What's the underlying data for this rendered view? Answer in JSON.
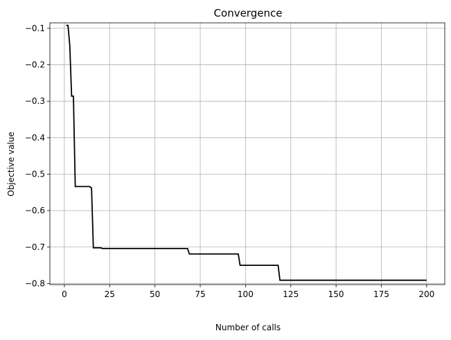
{
  "chart_data": {
    "type": "line",
    "title": "Convergence",
    "xlabel": "Number of calls",
    "ylabel": "Objective value",
    "xlim": [
      -8,
      210
    ],
    "ylim": [
      -0.803,
      -0.085
    ],
    "xticks": [
      0,
      25,
      50,
      75,
      100,
      125,
      150,
      175,
      200
    ],
    "yticks": [
      -0.8,
      -0.7,
      -0.6,
      -0.5,
      -0.4,
      -0.3,
      -0.2,
      -0.1
    ],
    "ytick_labels": [
      "−0.8",
      "−0.7",
      "−0.6",
      "−0.5",
      "−0.4",
      "−0.3",
      "−0.2",
      "−0.1"
    ],
    "grid": true,
    "color": "#000000",
    "series": [
      {
        "x": [
          1,
          2,
          3,
          4,
          5,
          6,
          7,
          8,
          9,
          10,
          11,
          12,
          13,
          14,
          15,
          16,
          17,
          18,
          19,
          20,
          21,
          22,
          25,
          30,
          40,
          50,
          60,
          67,
          68,
          69,
          70,
          75,
          80,
          85,
          90,
          95,
          96,
          97,
          98,
          100,
          105,
          110,
          115,
          117,
          118,
          119,
          120,
          130,
          150,
          175,
          200
        ],
        "y": [
          -0.092,
          -0.092,
          -0.148,
          -0.286,
          -0.286,
          -0.534,
          -0.534,
          -0.534,
          -0.534,
          -0.534,
          -0.534,
          -0.534,
          -0.534,
          -0.534,
          -0.538,
          -0.702,
          -0.702,
          -0.702,
          -0.702,
          -0.702,
          -0.704,
          -0.704,
          -0.704,
          -0.704,
          -0.704,
          -0.704,
          -0.704,
          -0.704,
          -0.704,
          -0.719,
          -0.719,
          -0.719,
          -0.719,
          -0.719,
          -0.719,
          -0.719,
          -0.719,
          -0.75,
          -0.75,
          -0.75,
          -0.75,
          -0.75,
          -0.75,
          -0.75,
          -0.75,
          -0.791,
          -0.791,
          -0.791,
          -0.791,
          -0.791,
          -0.791
        ]
      }
    ]
  }
}
